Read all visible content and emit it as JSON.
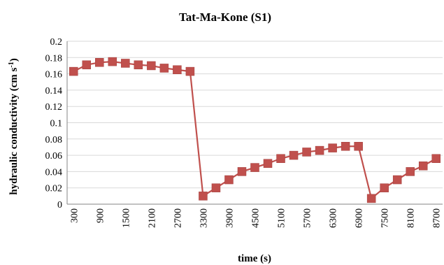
{
  "chart_data": {
    "type": "line",
    "title": "Tat-Ma-Kone (S1)",
    "xlabel": "time (s)",
    "ylabel": "hydraulic conductivity (cm s⁻¹)",
    "ylabel_parts": {
      "main": "hydraulic conductivity (cm s",
      "sup": "-1",
      "end": ")"
    },
    "ylim": [
      0,
      0.2
    ],
    "yticks": [
      0,
      0.02,
      0.04,
      0.06,
      0.08,
      0.1,
      0.12,
      0.14,
      0.16,
      0.18,
      0.2
    ],
    "ytick_labels": [
      "0",
      "0.02",
      "0.04",
      "0.06",
      "0.08",
      "0.1",
      "0.12",
      "0.14",
      "0.16",
      "0.18",
      "0.2"
    ],
    "x": [
      300,
      600,
      900,
      1200,
      1500,
      1800,
      2100,
      2400,
      2700,
      3000,
      3300,
      3600,
      3900,
      4200,
      4500,
      4800,
      5100,
      5400,
      5700,
      6000,
      6300,
      6600,
      6900,
      7200,
      7500,
      7800,
      8100,
      8400,
      8700
    ],
    "xtick_labels": [
      "300",
      "900",
      "1500",
      "2100",
      "2700",
      "3300",
      "3900",
      "4500",
      "5100",
      "5700",
      "6300",
      "6900",
      "7500",
      "8100",
      "8700"
    ],
    "xtick_values": [
      300,
      900,
      1500,
      2100,
      2700,
      3300,
      3900,
      4500,
      5100,
      5700,
      6300,
      6900,
      7500,
      8100,
      8700
    ],
    "series": [
      {
        "values": [
          0.163,
          0.171,
          0.174,
          0.175,
          0.173,
          0.171,
          0.17,
          0.167,
          0.165,
          0.163,
          0.01,
          0.02,
          0.03,
          0.04,
          0.045,
          0.05,
          0.056,
          0.06,
          0.064,
          0.066,
          0.069,
          0.071,
          0.071,
          0.007,
          0.02,
          0.03,
          0.04,
          0.047,
          0.056
        ],
        "color": "#c0504d"
      }
    ],
    "grid": true,
    "legend": "none"
  }
}
